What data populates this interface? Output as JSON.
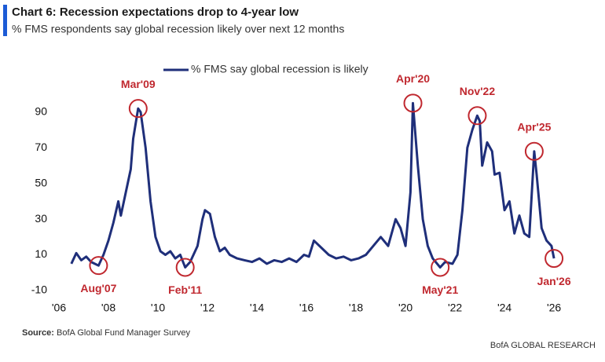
{
  "chart_data": {
    "type": "line",
    "title": "Chart 6: Recession expectations drop to 4-year low",
    "subtitle": "% FMS respondents say global recession likely over next 12 months",
    "x": [
      2006.5,
      2006.7,
      2006.9,
      2007.1,
      2007.3,
      2007.6,
      2007.8,
      2008.0,
      2008.2,
      2008.4,
      2008.5,
      2008.7,
      2008.9,
      2009.0,
      2009.2,
      2009.3,
      2009.5,
      2009.7,
      2009.9,
      2010.1,
      2010.3,
      2010.5,
      2010.7,
      2010.9,
      2011.1,
      2011.3,
      2011.6,
      2011.8,
      2011.9,
      2012.1,
      2012.3,
      2012.5,
      2012.7,
      2012.9,
      2013.2,
      2013.5,
      2013.8,
      2014.1,
      2014.4,
      2014.7,
      2015.0,
      2015.3,
      2015.6,
      2015.9,
      2016.1,
      2016.3,
      2016.6,
      2016.9,
      2017.2,
      2017.5,
      2017.8,
      2018.1,
      2018.4,
      2018.7,
      2019.0,
      2019.3,
      2019.6,
      2019.8,
      2020.0,
      2020.2,
      2020.3,
      2020.5,
      2020.7,
      2020.9,
      2021.1,
      2021.4,
      2021.6,
      2021.9,
      2022.1,
      2022.3,
      2022.5,
      2022.7,
      2022.9,
      2023.0,
      2023.1,
      2023.3,
      2023.5,
      2023.6,
      2023.8,
      2024.0,
      2024.2,
      2024.4,
      2024.6,
      2024.8,
      2025.0,
      2025.2,
      2025.3,
      2025.5,
      2025.7,
      2025.9,
      2026.0
    ],
    "series": [
      {
        "name": "% FMS say global recession is likely",
        "color": "#1f2f7a",
        "values": [
          5,
          11,
          7,
          9,
          6,
          4,
          10,
          18,
          28,
          40,
          32,
          45,
          58,
          75,
          92,
          90,
          70,
          40,
          20,
          12,
          10,
          12,
          8,
          10,
          3,
          6,
          15,
          30,
          35,
          33,
          20,
          12,
          14,
          10,
          8,
          7,
          6,
          8,
          5,
          7,
          6,
          8,
          6,
          10,
          9,
          18,
          14,
          10,
          8,
          9,
          7,
          8,
          10,
          15,
          20,
          15,
          30,
          25,
          15,
          45,
          95,
          60,
          30,
          15,
          8,
          3,
          6,
          5,
          10,
          35,
          70,
          80,
          88,
          85,
          60,
          73,
          68,
          55,
          56,
          35,
          40,
          22,
          32,
          22,
          20,
          68,
          55,
          25,
          18,
          15,
          8
        ]
      }
    ],
    "xlim": [
      2006,
      2026.6
    ],
    "xticks": [
      {
        "value": 2006,
        "label": "'06"
      },
      {
        "value": 2008,
        "label": "'08"
      },
      {
        "value": 2010,
        "label": "'10"
      },
      {
        "value": 2012,
        "label": "'12"
      },
      {
        "value": 2014,
        "label": "'14"
      },
      {
        "value": 2016,
        "label": "'16"
      },
      {
        "value": 2018,
        "label": "'18"
      },
      {
        "value": 2020,
        "label": "'20"
      },
      {
        "value": 2022,
        "label": "'22"
      },
      {
        "value": 2024,
        "label": "'24"
      },
      {
        "value": 2026,
        "label": "'26"
      }
    ],
    "ylim": [
      -10,
      100
    ],
    "yticks": [
      -10,
      10,
      30,
      50,
      70,
      90
    ],
    "annotations": [
      {
        "text": "Aug'07",
        "x": 2007.6,
        "y": 4
      },
      {
        "text": "Mar'09",
        "x": 2009.2,
        "y": 92
      },
      {
        "text": "Feb'11",
        "x": 2011.1,
        "y": 3
      },
      {
        "text": "Apr'20",
        "x": 2020.3,
        "y": 95
      },
      {
        "text": "May'21",
        "x": 2021.4,
        "y": 3
      },
      {
        "text": "Nov'22",
        "x": 2022.9,
        "y": 88
      },
      {
        "text": "Apr'25",
        "x": 2025.2,
        "y": 68
      },
      {
        "text": "Jan'26",
        "x": 2026.0,
        "y": 8
      }
    ],
    "annotation_color": "#c0282f",
    "source_label": "Source:",
    "source": "BofA Global Fund Manager Survey",
    "brand": "BofA GLOBAL RESEARCH"
  }
}
